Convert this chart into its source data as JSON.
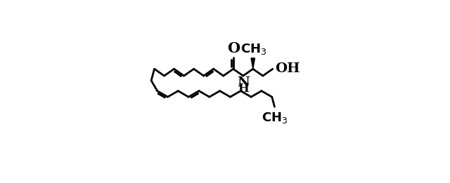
{
  "background_color": "#ffffff",
  "line_color": "#000000",
  "line_width": 2.0,
  "fig_width": 6.4,
  "fig_height": 2.61,
  "dpi": 100,
  "xlim": [
    -0.05,
    1.9
  ],
  "ylim": [
    -0.3,
    1.05
  ]
}
